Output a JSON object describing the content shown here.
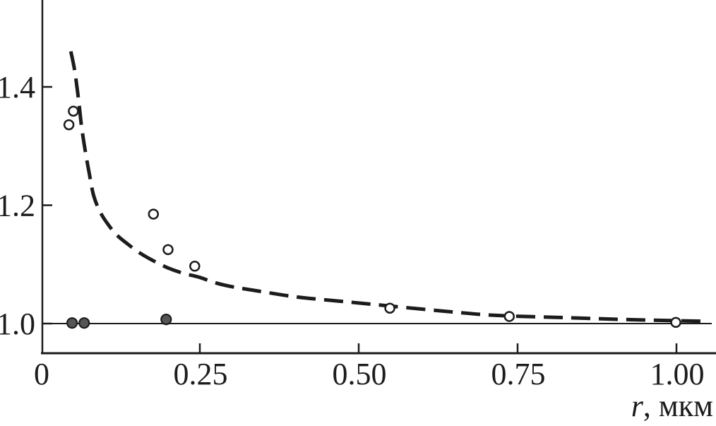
{
  "figure": {
    "background": "#ffffff",
    "description": "Scatter plot of a ratio (dimensionless, ~1.0-1.46) versus particle radius r in micrometers, with dashed theoretical curve and a solid reference line at 1.0"
  },
  "chart_data": {
    "type": "scatter",
    "title": "",
    "xlabel": "r, мкм",
    "xlabel_parts": {
      "variable": "r",
      "rest": ", мкм"
    },
    "ylabel": "",
    "xlim": [
      0,
      1.062
    ],
    "ylim": [
      0.95,
      1.547
    ],
    "grid": false,
    "legend": null,
    "x_ticks": [
      {
        "value": 0,
        "label": "0"
      },
      {
        "value": 0.25,
        "label": "0.25"
      },
      {
        "value": 0.5,
        "label": "0.50"
      },
      {
        "value": 0.75,
        "label": "0.75"
      },
      {
        "value": 1.0,
        "label": "1.00"
      }
    ],
    "y_ticks": [
      {
        "value": 1.0,
        "label": "1.0"
      },
      {
        "value": 1.2,
        "label": "1.2"
      },
      {
        "value": 1.4,
        "label": "1.4"
      }
    ],
    "reference_line_y": 1.0,
    "series": [
      {
        "name": "open-circle-points",
        "type": "scatter",
        "marker": "open-circle",
        "points": [
          [
            0.044,
            1.336
          ],
          [
            0.051,
            1.359
          ],
          [
            0.177,
            1.185
          ],
          [
            0.2,
            1.125
          ],
          [
            0.242,
            1.097
          ],
          [
            0.549,
            1.026
          ],
          [
            0.737,
            1.012
          ],
          [
            0.999,
            1.002
          ]
        ]
      },
      {
        "name": "filled-circle-points",
        "type": "scatter",
        "marker": "filled-circle",
        "points": [
          [
            0.049,
            1.001
          ],
          [
            0.068,
            1.001
          ],
          [
            0.197,
            1.007
          ]
        ]
      },
      {
        "name": "dashed-theory-curve",
        "type": "line",
        "style": "dashed",
        "points": [
          [
            0.047,
            1.46
          ],
          [
            0.053,
            1.428
          ],
          [
            0.059,
            1.38
          ],
          [
            0.064,
            1.332
          ],
          [
            0.07,
            1.29
          ],
          [
            0.076,
            1.254
          ],
          [
            0.083,
            1.216
          ],
          [
            0.093,
            1.189
          ],
          [
            0.106,
            1.167
          ],
          [
            0.12,
            1.149
          ],
          [
            0.137,
            1.134
          ],
          [
            0.156,
            1.119
          ],
          [
            0.177,
            1.106
          ],
          [
            0.2,
            1.094
          ],
          [
            0.224,
            1.085
          ],
          [
            0.25,
            1.078
          ],
          [
            0.274,
            1.069
          ],
          [
            0.302,
            1.062
          ],
          [
            0.336,
            1.056
          ],
          [
            0.402,
            1.045
          ],
          [
            0.469,
            1.038
          ],
          [
            0.536,
            1.031
          ],
          [
            0.624,
            1.022
          ],
          [
            0.713,
            1.014
          ],
          [
            0.824,
            1.01
          ],
          [
            0.913,
            1.007
          ],
          [
            0.991,
            1.005
          ],
          [
            1.039,
            1.004
          ]
        ]
      }
    ],
    "colors": {
      "ink": "#1c1c1c",
      "marker_fill": "#565656",
      "background": "#ffffff"
    }
  }
}
